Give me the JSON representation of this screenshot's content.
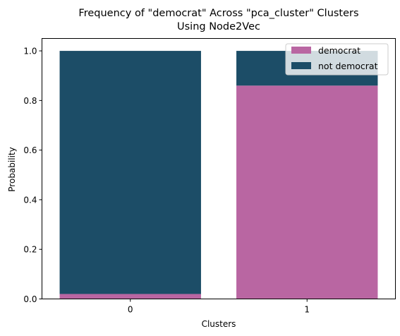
{
  "chart_data": {
    "type": "bar",
    "stacked": true,
    "title_line1": "Frequency of \"democrat\" Across \"pca_cluster\" Clusters",
    "title_line2": "Using Node2Vec",
    "xlabel": "Clusters",
    "ylabel": "Probability",
    "categories": [
      "0",
      "1"
    ],
    "ylim": [
      0,
      1.05
    ],
    "yticks": [
      "0.0",
      "0.2",
      "0.4",
      "0.6",
      "0.8",
      "1.0"
    ],
    "series": [
      {
        "name": "democrat",
        "values": [
          0.02,
          0.86
        ],
        "color": "#b966a2"
      },
      {
        "name": "not democrat",
        "values": [
          0.98,
          0.14
        ],
        "color": "#1c4d67"
      }
    ],
    "legend_placement": "top-right",
    "grid": false
  }
}
